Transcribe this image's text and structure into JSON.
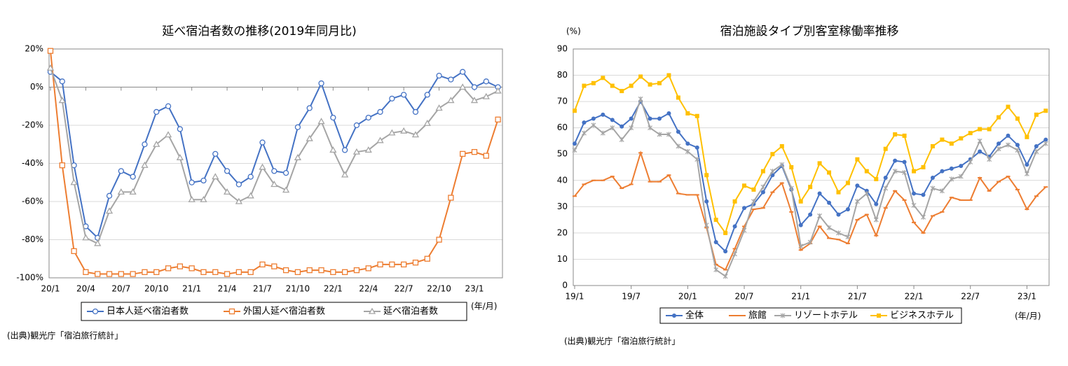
{
  "chart_data": [
    {
      "type": "line",
      "title": "延べ宿泊者数の推移(2019年同月比)",
      "xlabel": "(年/月)",
      "source": "(出典)観光庁「宿泊旅行統計」",
      "categories": [
        "20/1",
        null,
        null,
        "20/4",
        null,
        null,
        "20/7",
        null,
        null,
        "20/10",
        null,
        null,
        "21/1",
        null,
        null,
        "21/4",
        null,
        null,
        "21/7",
        null,
        null,
        "21/10",
        null,
        null,
        "22/1",
        null,
        null,
        "22/4",
        null,
        null,
        "22/7",
        null,
        null,
        "22/10",
        null,
        null,
        "23/1",
        null,
        null
      ],
      "ylim": [
        -100,
        20
      ],
      "yticks": [
        {
          "value": -100,
          "label": "-100%"
        },
        {
          "value": -80,
          "label": "-80%"
        },
        {
          "value": -60,
          "label": "-60%"
        },
        {
          "value": -40,
          "label": "-40%"
        },
        {
          "value": -20,
          "label": "-20%"
        },
        {
          "value": 0,
          "label": "0%"
        },
        {
          "value": 20,
          "label": "20%"
        }
      ],
      "grid": true,
      "series": [
        {
          "name": "日本人延べ宿泊者数",
          "color": "#4472c4",
          "values": [
            8,
            3,
            -41,
            -73,
            -79,
            -57,
            -44,
            -47,
            -30,
            -13,
            -10,
            -22,
            -50,
            -49,
            -35,
            -44,
            -51,
            -47,
            -29,
            -44,
            -45,
            -21,
            -11,
            2,
            -16,
            -33,
            -20,
            -16,
            -13,
            -6,
            -4,
            -13,
            -4,
            6,
            4,
            8,
            0,
            3,
            0
          ]
        },
        {
          "name": "外国人延べ宿泊者数",
          "color": "#ed7d31",
          "values": [
            19,
            -41,
            -86,
            -97,
            -98,
            -98,
            -98,
            -98,
            -97,
            -97,
            -95,
            -94,
            -95,
            -97,
            -97,
            -98,
            -97,
            -97,
            -93,
            -94,
            -96,
            -97,
            -96,
            -96,
            -97,
            -97,
            -96,
            -95,
            -93,
            -93,
            -93,
            -92,
            -90,
            -80,
            -58,
            -35,
            -34,
            -36,
            -17
          ]
        },
        {
          "name": "延べ宿泊者数",
          "color": "#a5a5a5",
          "values": [
            10,
            -7,
            -50,
            -79,
            -82,
            -65,
            -55,
            -55,
            -41,
            -30,
            -25,
            -37,
            -59,
            -59,
            -47,
            -55,
            -60,
            -57,
            -42,
            -51,
            -54,
            -37,
            -27,
            -18,
            -33,
            -46,
            -34,
            -33,
            -28,
            -24,
            -23,
            -25,
            -19,
            -11,
            -7,
            0,
            -7,
            -5,
            -2
          ]
        }
      ]
    },
    {
      "type": "line",
      "title": "宿泊施設タイプ別客室稼働率推移",
      "ylabel": "(%)",
      "xlabel": "(年/月)",
      "source": "(出典)観光庁「宿泊旅行統計」",
      "categories": [
        "19/1",
        null,
        null,
        null,
        null,
        null,
        "19/7",
        null,
        null,
        null,
        null,
        null,
        "20/1",
        null,
        null,
        null,
        null,
        null,
        "20/7",
        null,
        null,
        null,
        null,
        null,
        "21/1",
        null,
        null,
        null,
        null,
        null,
        "21/7",
        null,
        null,
        null,
        null,
        null,
        "22/1",
        null,
        null,
        null,
        null,
        null,
        "22/7",
        null,
        null,
        null,
        null,
        null,
        "23/1",
        null,
        null
      ],
      "ylim": [
        0,
        90
      ],
      "yticks": [
        0,
        10,
        20,
        30,
        40,
        50,
        60,
        70,
        80,
        90
      ],
      "grid": true,
      "series": [
        {
          "name": "全体",
          "color": "#4472c4",
          "values": [
            54,
            62,
            63.5,
            65,
            63,
            60.5,
            63.5,
            70,
            63.5,
            63.5,
            65.5,
            58.5,
            54,
            52.5,
            32,
            16.5,
            13,
            22.5,
            29.5,
            31,
            35.5,
            42,
            45.5,
            36.5,
            23,
            27,
            35,
            31.5,
            27,
            29,
            38,
            36,
            31,
            41,
            47.5,
            47,
            35,
            34.5,
            41,
            43.5,
            44.5,
            45.5,
            48,
            51,
            49,
            54,
            57,
            53.5,
            46,
            53,
            55.5
          ]
        },
        {
          "name": "旅館",
          "color": "#ed7d31",
          "values": [
            34,
            38.5,
            40,
            40,
            41.5,
            37,
            38.5,
            50.5,
            39.5,
            39.5,
            42,
            35,
            34.5,
            34.5,
            22,
            8,
            6,
            14,
            22.5,
            29,
            29.5,
            35.5,
            39,
            28,
            13.5,
            16,
            22.5,
            18,
            17.5,
            16,
            25,
            27,
            19,
            29.5,
            36,
            32.5,
            24,
            20,
            26.5,
            28,
            33.5,
            32.5,
            32.5,
            41,
            36,
            39.5,
            41.5,
            36.5,
            29,
            34,
            37.5
          ]
        },
        {
          "name": "リゾートホテル",
          "color": "#a5a5a5",
          "values": [
            51.5,
            58,
            61,
            58,
            60,
            55.5,
            60,
            71,
            60,
            57.5,
            57.5,
            53,
            51,
            48,
            23,
            6,
            3.5,
            12,
            21,
            32,
            37.5,
            43.5,
            46,
            37,
            15,
            16.5,
            26.5,
            22,
            20,
            18.5,
            32,
            35,
            25,
            37,
            43.5,
            43,
            30.5,
            26,
            37,
            36,
            40.5,
            41.5,
            47,
            55,
            48,
            52,
            53.5,
            51.5,
            42.5,
            51,
            54
          ]
        },
        {
          "name": "ビジネスホテル",
          "color": "#ffc000",
          "values": [
            66.5,
            76,
            77,
            79,
            76,
            74,
            76,
            79.5,
            76.5,
            77,
            80,
            71.5,
            65.5,
            64.5,
            42,
            25,
            20,
            32,
            38,
            36.5,
            43.5,
            50,
            53,
            45,
            32,
            37.5,
            46.5,
            43,
            35.5,
            39,
            48,
            43.5,
            40.5,
            52,
            57.5,
            57,
            43.5,
            45,
            53,
            55.5,
            54,
            56,
            58,
            59.5,
            59.5,
            64,
            68,
            63.5,
            56.5,
            65,
            66.5
          ]
        }
      ]
    }
  ]
}
